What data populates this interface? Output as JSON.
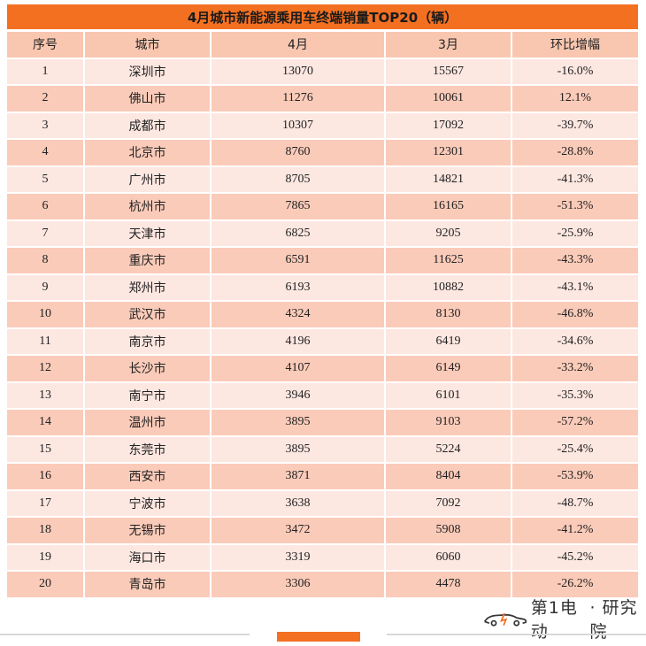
{
  "title": "4月城市新能源乘用车终端销量TOP20（辆）",
  "headers": [
    "序号",
    "城市",
    "4月",
    "3月",
    "环比增幅"
  ],
  "rows": [
    {
      "rank": "1",
      "city": "深圳市",
      "apr": "13070",
      "mar": "15567",
      "mom": "-16.0%"
    },
    {
      "rank": "2",
      "city": "佛山市",
      "apr": "11276",
      "mar": "10061",
      "mom": "12.1%"
    },
    {
      "rank": "3",
      "city": "成都市",
      "apr": "10307",
      "mar": "17092",
      "mom": "-39.7%"
    },
    {
      "rank": "4",
      "city": "北京市",
      "apr": "8760",
      "mar": "12301",
      "mom": "-28.8%"
    },
    {
      "rank": "5",
      "city": "广州市",
      "apr": "8705",
      "mar": "14821",
      "mom": "-41.3%"
    },
    {
      "rank": "6",
      "city": "杭州市",
      "apr": "7865",
      "mar": "16165",
      "mom": "-51.3%"
    },
    {
      "rank": "7",
      "city": "天津市",
      "apr": "6825",
      "mar": "9205",
      "mom": "-25.9%"
    },
    {
      "rank": "8",
      "city": "重庆市",
      "apr": "6591",
      "mar": "11625",
      "mom": "-43.3%"
    },
    {
      "rank": "9",
      "city": "郑州市",
      "apr": "6193",
      "mar": "10882",
      "mom": "-43.1%"
    },
    {
      "rank": "10",
      "city": "武汉市",
      "apr": "4324",
      "mar": "8130",
      "mom": "-46.8%"
    },
    {
      "rank": "11",
      "city": "南京市",
      "apr": "4196",
      "mar": "6419",
      "mom": "-34.6%"
    },
    {
      "rank": "12",
      "city": "长沙市",
      "apr": "4107",
      "mar": "6149",
      "mom": "-33.2%"
    },
    {
      "rank": "13",
      "city": "南宁市",
      "apr": "3946",
      "mar": "6101",
      "mom": "-35.3%"
    },
    {
      "rank": "14",
      "city": "温州市",
      "apr": "3895",
      "mar": "9103",
      "mom": "-57.2%"
    },
    {
      "rank": "15",
      "city": "东莞市",
      "apr": "3895",
      "mar": "5224",
      "mom": "-25.4%"
    },
    {
      "rank": "16",
      "city": "西安市",
      "apr": "3871",
      "mar": "8404",
      "mom": "-53.9%"
    },
    {
      "rank": "17",
      "city": "宁波市",
      "apr": "3638",
      "mar": "7092",
      "mom": "-48.7%"
    },
    {
      "rank": "18",
      "city": "无锡市",
      "apr": "3472",
      "mar": "5908",
      "mom": "-41.2%"
    },
    {
      "rank": "19",
      "city": "海口市",
      "apr": "3319",
      "mar": "6060",
      "mom": "-45.2%"
    },
    {
      "rank": "20",
      "city": "青岛市",
      "apr": "3306",
      "mar": "4478",
      "mom": "-26.2%"
    }
  ],
  "footer": {
    "logo_name": "第1电动",
    "logo_suffix": "· 研究院",
    "logo_icon": "car-logo-icon",
    "accent": "#f37021"
  }
}
